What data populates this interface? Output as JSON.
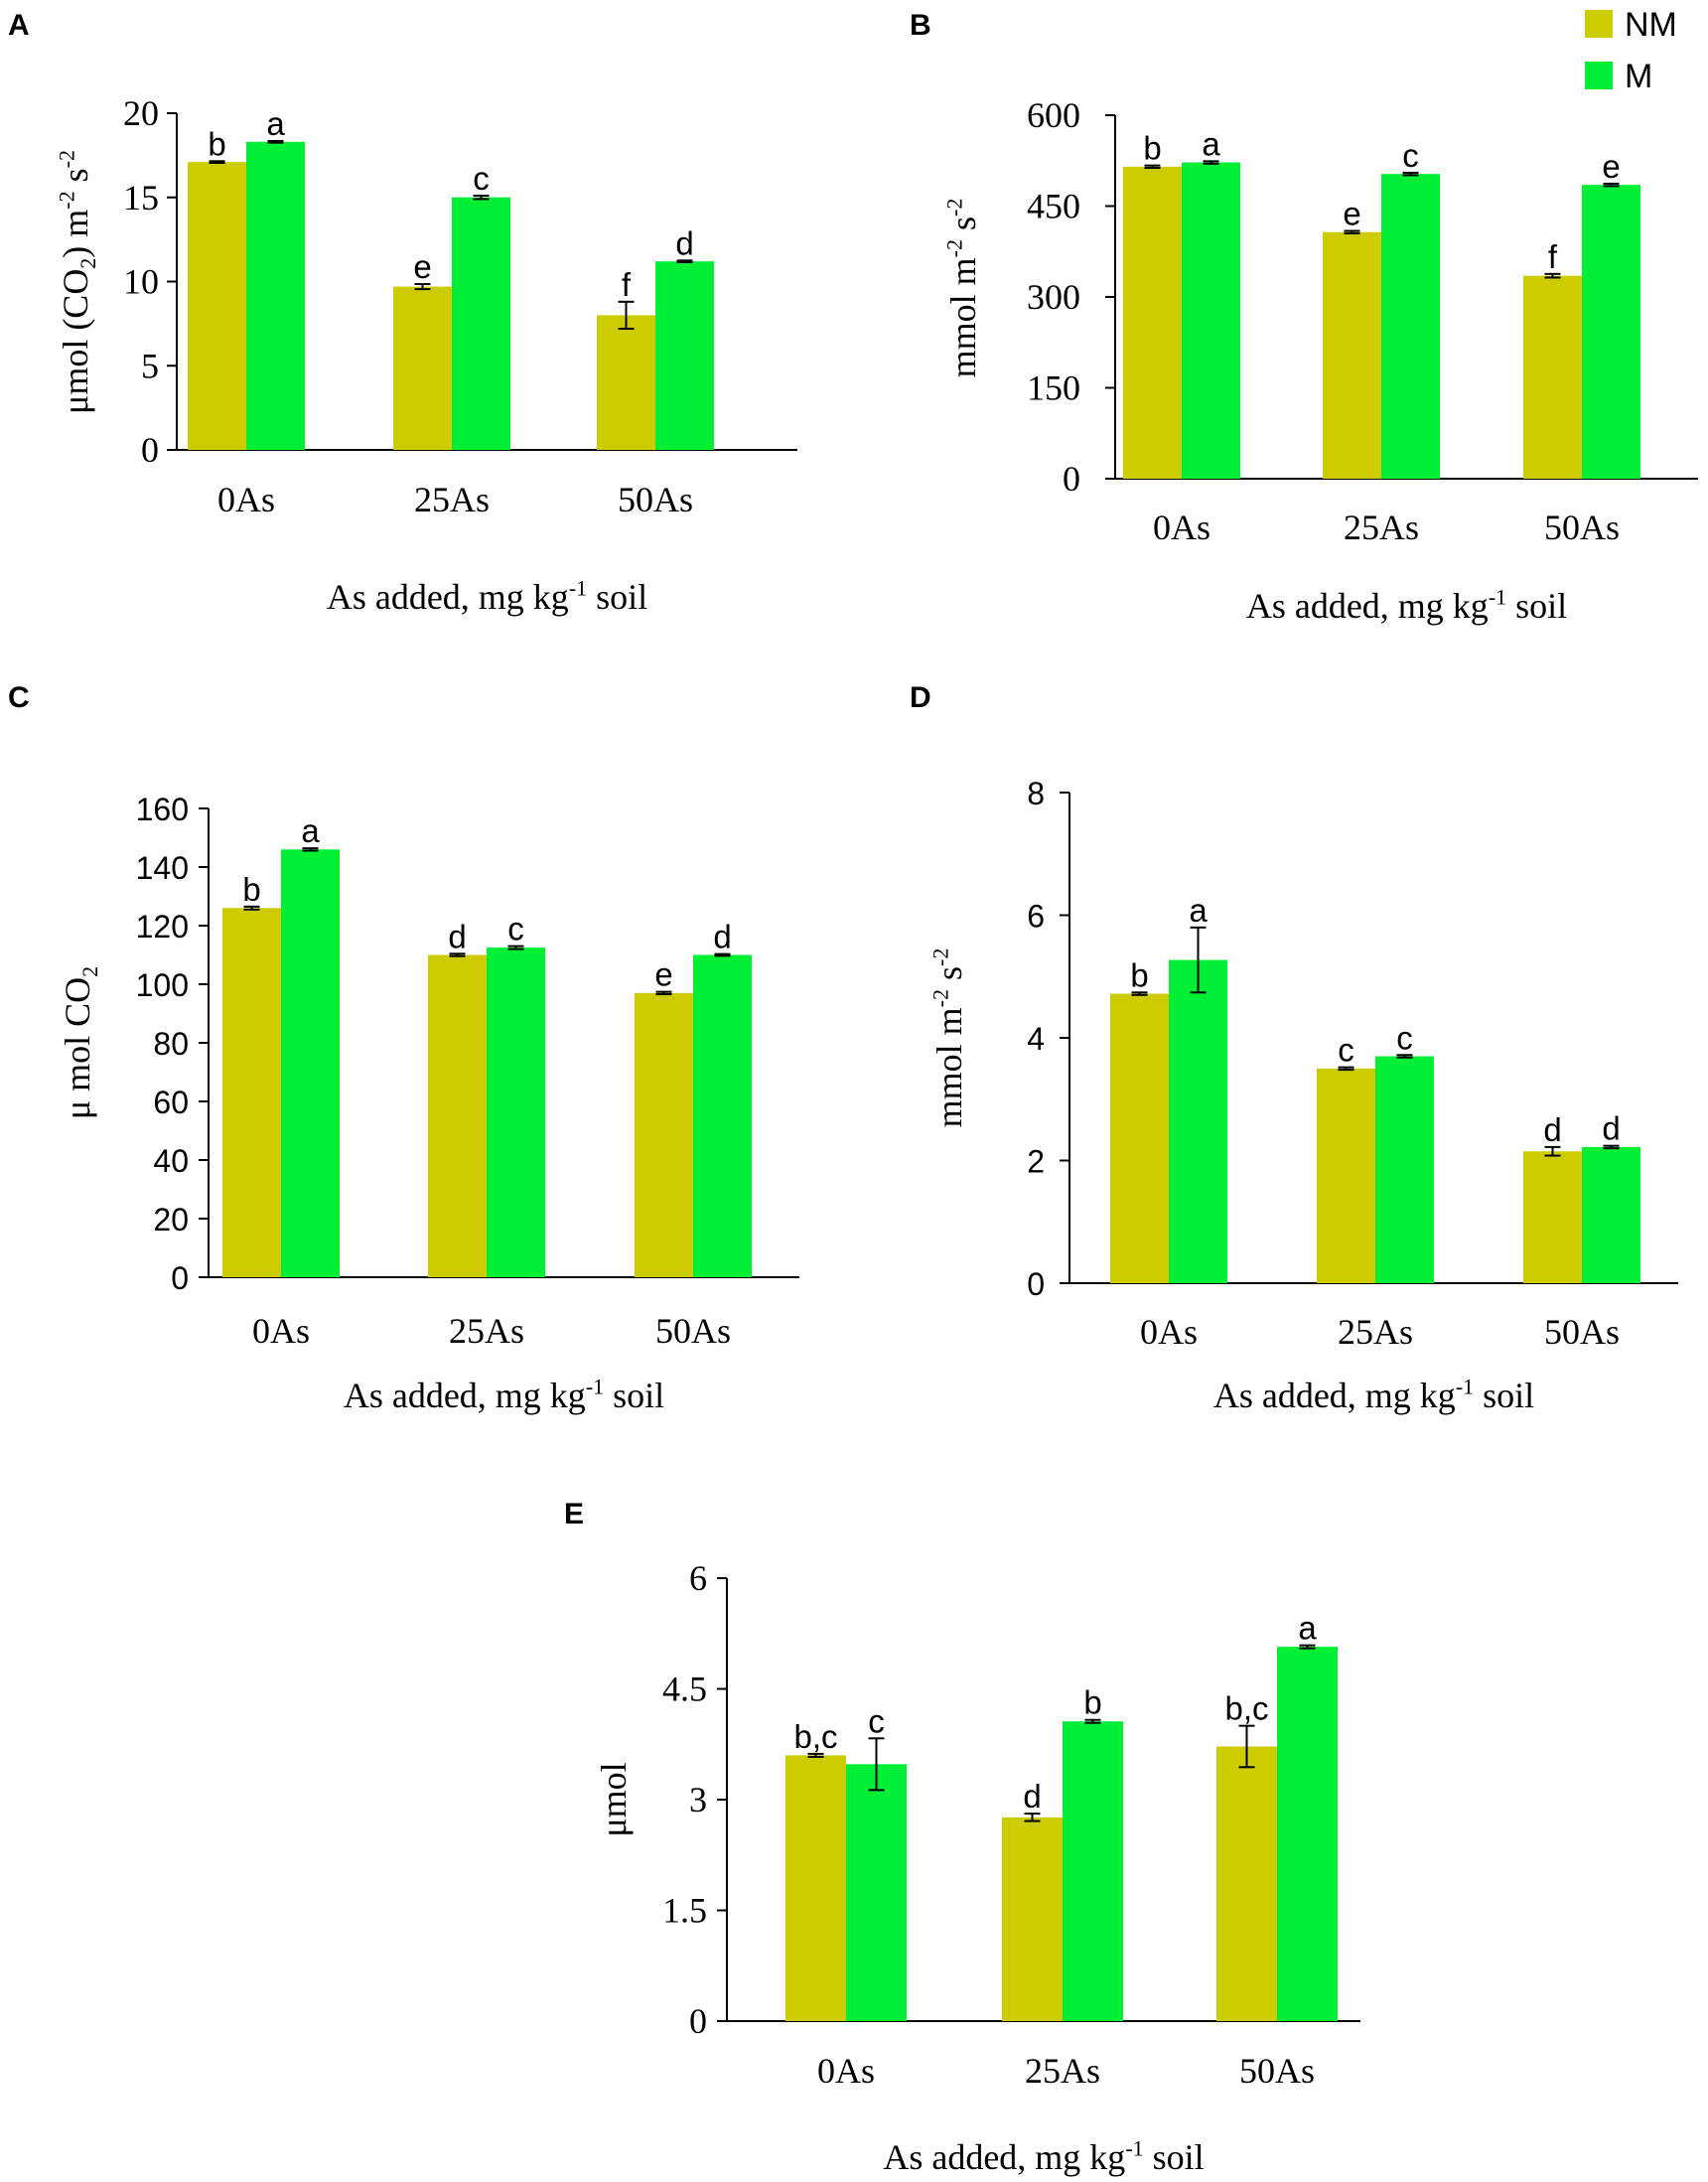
{
  "legend": {
    "entries": [
      {
        "name": "NM",
        "color": "#cccc00"
      },
      {
        "name": "M",
        "color": "#00ee33"
      }
    ]
  },
  "colors": {
    "NM": "#cccc00",
    "M": "#00ee33"
  },
  "chart_data": [
    {
      "panel": "A",
      "type": "bar",
      "categories": [
        "0As",
        "25As",
        "50As"
      ],
      "ylabel": "μmol (CO2) m-2 s-2",
      "ylabel_parts": [
        {
          "t": "μmol (CO"
        },
        {
          "t": "2",
          "sub": true
        },
        {
          "t": ") m"
        },
        {
          "t": "-2",
          "sup": true
        },
        {
          "t": " s"
        },
        {
          "t": "-2",
          "sup": true
        }
      ],
      "xlabel": "As added, mg kg-1 soil",
      "xlabel_parts": [
        {
          "t": "As added, mg kg"
        },
        {
          "t": "-1",
          "sup": true
        },
        {
          "t": " soil"
        }
      ],
      "ylim": [
        0,
        20
      ],
      "ticks": [
        "0",
        "5",
        "10",
        "15",
        "20"
      ],
      "tick_values": [
        0,
        5,
        10,
        15,
        20
      ],
      "series": [
        {
          "name": "NM",
          "values": [
            17.1,
            9.7,
            8.0
          ],
          "errors": [
            0.05,
            0.15,
            0.8
          ],
          "letters": [
            "b",
            "e",
            "f"
          ]
        },
        {
          "name": "M",
          "values": [
            18.3,
            15.0,
            11.2
          ],
          "errors": [
            0.05,
            0.1,
            0.05
          ],
          "letters": [
            "a",
            "c",
            "d"
          ]
        }
      ]
    },
    {
      "panel": "B",
      "type": "bar",
      "categories": [
        "0As",
        "25As",
        "50As"
      ],
      "ylabel": "mmol m-2 s-2",
      "ylabel_parts": [
        {
          "t": "mmol m"
        },
        {
          "t": "-2",
          "sup": true
        },
        {
          "t": " s"
        },
        {
          "t": "-2",
          "sup": true
        }
      ],
      "xlabel": "As added, mg kg-1 soil",
      "xlabel_parts": [
        {
          "t": "As added, mg kg"
        },
        {
          "t": "-1",
          "sup": true
        },
        {
          "t": " soil"
        }
      ],
      "ylim": [
        0,
        600
      ],
      "ticks": [
        "0",
        "150",
        "300",
        "450",
        "600"
      ],
      "tick_values": [
        0,
        150,
        300,
        450,
        600
      ],
      "series": [
        {
          "name": "NM",
          "values": [
            515,
            407,
            335
          ],
          "errors": [
            2,
            2,
            3
          ],
          "letters": [
            "b",
            "e",
            "f"
          ]
        },
        {
          "name": "M",
          "values": [
            522,
            503,
            485
          ],
          "errors": [
            2,
            2,
            2
          ],
          "letters": [
            "a",
            "c",
            "e"
          ]
        }
      ]
    },
    {
      "panel": "C",
      "type": "bar",
      "categories": [
        "0As",
        "25As",
        "50As"
      ],
      "ylabel": "μ mol CO2",
      "ylabel_parts": [
        {
          "t": "μ mol  CO"
        },
        {
          "t": "2",
          "sub": true
        }
      ],
      "xlabel": "As added, mg kg-1 soil",
      "xlabel_parts": [
        {
          "t": "As added, mg kg"
        },
        {
          "t": "-1",
          "sup": true
        },
        {
          "t": " soil"
        }
      ],
      "ylim": [
        0,
        160
      ],
      "ticks": [
        "0",
        "20",
        "40",
        "60",
        "80",
        "100",
        "120",
        "140",
        "160"
      ],
      "tick_values": [
        0,
        20,
        40,
        60,
        80,
        100,
        120,
        140,
        160
      ],
      "series": [
        {
          "name": "NM",
          "values": [
            126,
            110,
            97
          ],
          "errors": [
            0.5,
            0.4,
            0.4
          ],
          "letters": [
            "b",
            "d",
            "e"
          ]
        },
        {
          "name": "M",
          "values": [
            146,
            112.5,
            110
          ],
          "errors": [
            0.4,
            0.5,
            0.3
          ],
          "letters": [
            "a",
            "c",
            "d"
          ]
        }
      ]
    },
    {
      "panel": "D",
      "type": "bar",
      "categories": [
        "0As",
        "25As",
        "50As"
      ],
      "ylabel": "mmol m-2 s-2",
      "ylabel_parts": [
        {
          "t": "mmol m"
        },
        {
          "t": "-2",
          "sup": true
        },
        {
          "t": " s"
        },
        {
          "t": "-2",
          "sup": true
        }
      ],
      "xlabel": "As added, mg kg-1 soil",
      "xlabel_parts": [
        {
          "t": "As added, mg kg"
        },
        {
          "t": "-1",
          "sup": true
        },
        {
          "t": " soil"
        }
      ],
      "ylim": [
        0,
        8
      ],
      "ticks": [
        "0",
        "2",
        "4",
        "6",
        "8"
      ],
      "tick_values": [
        0,
        2,
        4,
        6,
        8
      ],
      "series": [
        {
          "name": "NM",
          "values": [
            4.72,
            3.5,
            2.15
          ],
          "errors": [
            0.02,
            0.02,
            0.07
          ],
          "letters": [
            "b",
            "c",
            "d"
          ]
        },
        {
          "name": "M",
          "values": [
            5.27,
            3.7,
            2.22
          ],
          "errors": [
            0.53,
            0.02,
            0.02
          ],
          "letters": [
            "a",
            "c",
            "d"
          ]
        }
      ]
    },
    {
      "panel": "E",
      "type": "bar",
      "categories": [
        "0As",
        "25As",
        "50As"
      ],
      "ylabel": "μmol",
      "ylabel_parts": [
        {
          "t": "μmol"
        }
      ],
      "xlabel": "As added, mg kg-1 soil",
      "xlabel_parts": [
        {
          "t": "As added, mg kg"
        },
        {
          "t": "-1",
          "sup": true
        },
        {
          "t": " soil"
        }
      ],
      "ylim": [
        0,
        6
      ],
      "ticks": [
        "0",
        "1.5",
        "3",
        "4.5",
        "6"
      ],
      "tick_values": [
        0,
        1.5,
        3,
        4.5,
        6
      ],
      "series": [
        {
          "name": "NM",
          "values": [
            3.6,
            2.76,
            3.72
          ],
          "errors": [
            0.02,
            0.05,
            0.28
          ],
          "letters": [
            "b,c",
            "d",
            "b,c"
          ]
        },
        {
          "name": "M",
          "values": [
            3.48,
            4.06,
            5.07
          ],
          "errors": [
            0.35,
            0.02,
            0.02
          ],
          "letters": [
            "c",
            "b",
            "a"
          ]
        }
      ]
    }
  ]
}
